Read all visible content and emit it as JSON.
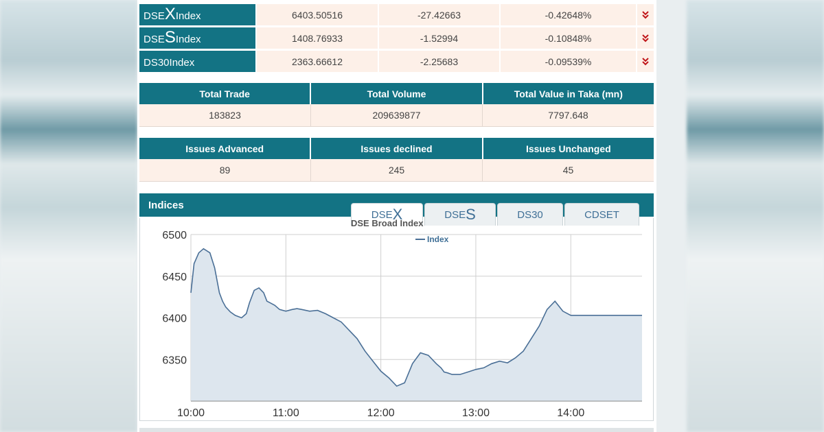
{
  "indices": [
    {
      "prefix": "DSE",
      "letter": "X",
      "suffix": " Index",
      "value": "6403.50516",
      "change": "-27.42663",
      "pct": "-0.42648%"
    },
    {
      "prefix": "DSE",
      "letter": "S",
      "suffix": " Index",
      "value": "1408.76933",
      "change": "-1.52994",
      "pct": "-0.10848%"
    },
    {
      "prefix": "DS30",
      "letter": "",
      "suffix": " Index",
      "value": "2363.66612",
      "change": "-2.25683",
      "pct": "-0.09539%"
    }
  ],
  "trade_summary": {
    "headers": [
      "Total Trade",
      "Total Volume",
      "Total Value in Taka (mn)"
    ],
    "values": [
      "183823",
      "209639877",
      "7797.648"
    ]
  },
  "issues_summary": {
    "headers": [
      "Issues Advanced",
      "Issues declined",
      "Issues Unchanged"
    ],
    "values": [
      "89",
      "245",
      "45"
    ]
  },
  "indices_section": {
    "title": "Indices",
    "tabs": [
      {
        "prefix": "DSE",
        "letter": "X",
        "active": true
      },
      {
        "prefix": "DSE",
        "letter": "S",
        "active": false
      },
      {
        "prefix": "DS30",
        "letter": "",
        "active": false
      },
      {
        "prefix": "CDSET",
        "letter": "",
        "active": false
      }
    ]
  },
  "colors": {
    "header_teal": "#137384",
    "cell_bg": "#fdf0e8",
    "down_red": "#c0161a",
    "line": "#4a6f96",
    "area": "#dde6ee"
  },
  "icons": {
    "trend": "double-chevron-down-icon"
  },
  "chart_data": {
    "type": "area",
    "title": "DSE Broad Index",
    "legend": [
      "Index"
    ],
    "legend_position": "top-center",
    "xlabel": "",
    "ylabel": "",
    "x_ticks": [
      "10:00",
      "11:00",
      "12:00",
      "13:00",
      "14:00"
    ],
    "y_ticks": [
      6350,
      6400,
      6450,
      6500
    ],
    "xlim": [
      0,
      285
    ],
    "ylim": [
      6300,
      6500
    ],
    "grid": true,
    "series": [
      {
        "name": "Index",
        "x": [
          0,
          2,
          5,
          8,
          12,
          15,
          18,
          20,
          22,
          25,
          28,
          32,
          35,
          37,
          40,
          43,
          46,
          48,
          50,
          53,
          56,
          60,
          64,
          67,
          70,
          75,
          80,
          85,
          90,
          95,
          100,
          105,
          110,
          115,
          120,
          125,
          130,
          135,
          140,
          145,
          150,
          155,
          158,
          160,
          162,
          165,
          170,
          175,
          180,
          185,
          190,
          195,
          200,
          205,
          210,
          215,
          220,
          225,
          230,
          235,
          240,
          245,
          250,
          253,
          255,
          258,
          260,
          265,
          270,
          275,
          280,
          285
        ],
        "y": [
          6430,
          6465,
          6478,
          6483,
          6478,
          6460,
          6430,
          6420,
          6413,
          6407,
          6403,
          6400,
          6405,
          6418,
          6433,
          6436,
          6430,
          6420,
          6418,
          6415,
          6410,
          6408,
          6410,
          6411,
          6410,
          6408,
          6409,
          6405,
          6400,
          6395,
          6385,
          6375,
          6360,
          6348,
          6336,
          6328,
          6318,
          6322,
          6345,
          6358,
          6355,
          6345,
          6340,
          6335,
          6334,
          6332,
          6332,
          6335,
          6338,
          6340,
          6345,
          6348,
          6346,
          6352,
          6360,
          6375,
          6390,
          6410,
          6420,
          6408,
          6403,
          6403,
          6403,
          6403,
          6403,
          6403,
          6403,
          6403,
          6403,
          6403,
          6403,
          6403
        ]
      }
    ]
  }
}
